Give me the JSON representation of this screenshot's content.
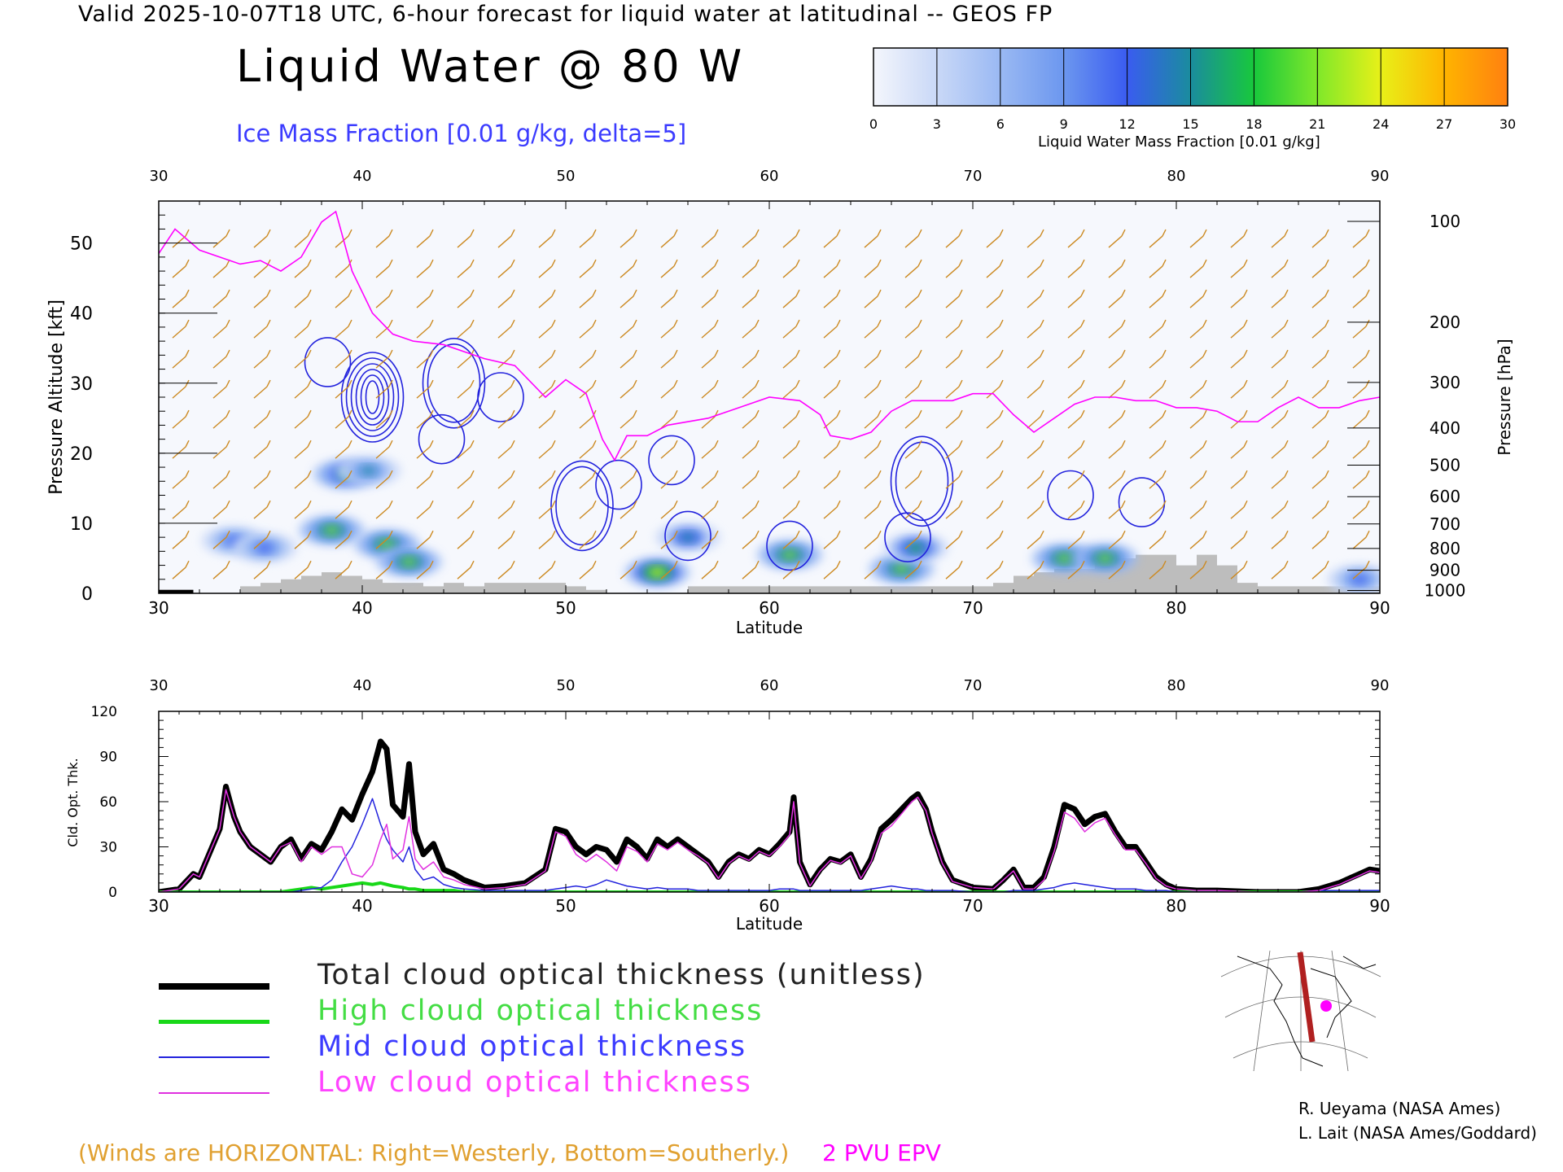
{
  "header": {
    "title": "Valid 2025-10-07T18 UTC, 6-hour forecast for liquid water at latitudinal -- GEOS FP",
    "main_title": "Liquid Water @ 80 W",
    "ice_label": "Ice Mass Fraction [0.01 g/kg, delta=5]"
  },
  "colorbar": {
    "title": "Liquid Water Mass Fraction [0.01 g/kg]",
    "ticks": [
      "0",
      "3",
      "6",
      "9",
      "12",
      "15",
      "18",
      "21",
      "24",
      "27",
      "30"
    ],
    "colors": [
      "#f4f6fc",
      "#c9d8f7",
      "#9ab9f3",
      "#6c97ef",
      "#3a5cf0",
      "#1a8c9e",
      "#18c83c",
      "#7fe82a",
      "#e8f018",
      "#ffb400",
      "#ff8010"
    ]
  },
  "legend": {
    "total": "Total cloud optical thickness (unitless)",
    "high": "High cloud optical thickness",
    "mid": "Mid cloud optical thickness",
    "low": "Low cloud optical thickness"
  },
  "notes": {
    "winds": "(Winds are HORIZONTAL: Right=Westerly, Bottom=Southerly.)",
    "pvu": "2 PVU EPV"
  },
  "credits": [
    "R. Ueyama (NASA Ames)",
    "L. Lait (NASA Ames/Goddard)"
  ],
  "colors": {
    "total": "#000000",
    "high": "#18d818",
    "mid": "#2222dd",
    "low": "#e030e0",
    "wind_barbs": "#cc8a22",
    "epv": "#ff00ff",
    "terrain": "#bdbdbd"
  },
  "chart_data": [
    {
      "type": "heatmap",
      "title": "Liquid Water @ 80 W",
      "xlabel": "Latitude",
      "ylabel": "Pressure Altitude [kft]",
      "ylabel_right": "Pressure [hPa]",
      "xlim": [
        30,
        90
      ],
      "ylim": [
        0,
        56
      ],
      "x_ticks": [
        "30",
        "40",
        "50",
        "60",
        "70",
        "80",
        "90"
      ],
      "y_ticks": [
        "0",
        "10",
        "20",
        "30",
        "40",
        "50"
      ],
      "pressure_ticks": [
        "100",
        "200",
        "300",
        "400",
        "500",
        "600",
        "700",
        "800",
        "900",
        "1000"
      ],
      "pressure_tick_alt": [
        53.1,
        38.7,
        30.1,
        23.6,
        18.3,
        13.8,
        9.9,
        6.4,
        3.3,
        0.4
      ],
      "liquid_water_blobs": [
        {
          "lat": 33.7,
          "alt": 7.5,
          "value": 12
        },
        {
          "lat": 35.2,
          "alt": 6.5,
          "value": 13
        },
        {
          "lat": 38.5,
          "alt": 9.0,
          "value": 22
        },
        {
          "lat": 39.2,
          "alt": 17.0,
          "value": 18
        },
        {
          "lat": 40.3,
          "alt": 17.5,
          "value": 14
        },
        {
          "lat": 41.2,
          "alt": 7.0,
          "value": 20
        },
        {
          "lat": 42.3,
          "alt": 4.5,
          "value": 21
        },
        {
          "lat": 54.5,
          "alt": 3.0,
          "value": 24
        },
        {
          "lat": 56.0,
          "alt": 8.0,
          "value": 16
        },
        {
          "lat": 61.0,
          "alt": 5.5,
          "value": 20
        },
        {
          "lat": 66.5,
          "alt": 3.5,
          "value": 22
        },
        {
          "lat": 67.2,
          "alt": 6.5,
          "value": 17
        },
        {
          "lat": 74.5,
          "alt": 5.0,
          "value": 20
        },
        {
          "lat": 76.5,
          "alt": 5.0,
          "value": 21
        },
        {
          "lat": 89.0,
          "alt": 2.0,
          "value": 12
        }
      ],
      "ice_contours": [
        {
          "lat": 38.3,
          "alt": 33,
          "levels": 1
        },
        {
          "lat": 40.5,
          "alt": 28,
          "levels": 6
        },
        {
          "lat": 44.5,
          "alt": 30,
          "levels": 2
        },
        {
          "lat": 43.9,
          "alt": 22,
          "levels": 1
        },
        {
          "lat": 46.8,
          "alt": 28,
          "levels": 1
        },
        {
          "lat": 50.8,
          "alt": 12.5,
          "levels": 2
        },
        {
          "lat": 52.6,
          "alt": 15.5,
          "levels": 1
        },
        {
          "lat": 55.2,
          "alt": 19,
          "levels": 1
        },
        {
          "lat": 56.0,
          "alt": 8.2,
          "levels": 1
        },
        {
          "lat": 61.0,
          "alt": 6.8,
          "levels": 1
        },
        {
          "lat": 67.5,
          "alt": 16,
          "levels": 2
        },
        {
          "lat": 66.8,
          "alt": 8,
          "levels": 1
        },
        {
          "lat": 74.8,
          "alt": 14,
          "levels": 1
        },
        {
          "lat": 78.3,
          "alt": 13,
          "levels": 1
        }
      ],
      "epv_2pvu": {
        "x": [
          30,
          30.8,
          32,
          33,
          34,
          35,
          36,
          37,
          38,
          38.7,
          39.5,
          40.5,
          41.5,
          42.5,
          44,
          46,
          47.5,
          49,
          50,
          51,
          51.8,
          52.4,
          53,
          54,
          55,
          57,
          58,
          59,
          60,
          61.5,
          62.5,
          63,
          64,
          65,
          66,
          67,
          68,
          69,
          70,
          71,
          72,
          73,
          74,
          75,
          76,
          77,
          78,
          79,
          80,
          81,
          82,
          83,
          84,
          85,
          86,
          87,
          88,
          89,
          90
        ],
        "y": [
          48.5,
          52,
          49,
          48,
          47,
          47.5,
          46,
          48,
          53,
          54.5,
          46,
          40,
          37,
          36,
          35.5,
          33.5,
          32.5,
          28,
          30.5,
          28.5,
          22,
          19,
          22.5,
          22.5,
          24,
          25,
          26,
          27,
          28,
          27.5,
          25.5,
          22.5,
          22,
          23,
          26,
          27.5,
          27.5,
          27.5,
          28.5,
          28.5,
          25.5,
          23,
          25,
          27,
          28,
          28,
          27.5,
          27.5,
          26.5,
          26.5,
          26,
          24.5,
          24.5,
          26.5,
          28,
          26.5,
          26.5,
          27.5,
          28
        ]
      },
      "terrain_kft": {
        "x": [
          30,
          34,
          35,
          36,
          37,
          38,
          39,
          40,
          41,
          42,
          43,
          44,
          45,
          46,
          47,
          48,
          49,
          50,
          51,
          52,
          53,
          54,
          55,
          56,
          57,
          58,
          59,
          60,
          61,
          62,
          63,
          64,
          65,
          66,
          67,
          68,
          69,
          70,
          71,
          72,
          73,
          74,
          75,
          76,
          77,
          78,
          79,
          80,
          81,
          82,
          83,
          84,
          85,
          86,
          87,
          88,
          89,
          90
        ],
        "y": [
          0,
          1,
          1.5,
          2,
          2.5,
          3,
          2.5,
          2,
          1.5,
          1.5,
          1,
          1.5,
          1,
          1.5,
          1.5,
          1.5,
          1.5,
          1,
          0.5,
          0,
          0,
          0,
          0,
          1,
          1,
          1,
          1,
          1,
          1,
          1,
          1,
          1,
          1,
          1,
          1,
          1,
          1,
          1,
          1.5,
          2.5,
          3,
          3.5,
          3.5,
          4.5,
          5,
          5.5,
          5.5,
          4,
          5.5,
          4,
          1.5,
          1,
          1,
          1,
          1,
          1,
          1,
          0
        ]
      },
      "wind_barbs": "horizontal wind barbs at every 2 degrees latitude (values not labeled)"
    },
    {
      "type": "line",
      "xlabel": "Latitude",
      "ylabel": "Cld. Opt. Thk.",
      "xlim": [
        30,
        90
      ],
      "ylim": [
        0,
        120
      ],
      "x_ticks": [
        "30",
        "40",
        "50",
        "60",
        "70",
        "80",
        "90"
      ],
      "y_ticks": [
        "0",
        "30",
        "60",
        "90",
        "120"
      ],
      "x": [
        30,
        31,
        31.7,
        32,
        33,
        33.3,
        33.7,
        34,
        34.5,
        35,
        35.5,
        36,
        36.5,
        37,
        37.5,
        38,
        38.5,
        39,
        39.5,
        40,
        40.5,
        40.9,
        41.2,
        41.5,
        42,
        42.3,
        42.6,
        43,
        43.5,
        44,
        44.5,
        45,
        46,
        47,
        48,
        49,
        49.5,
        50,
        50.5,
        51,
        51.5,
        52,
        52.5,
        53,
        53.5,
        54,
        54.5,
        55,
        55.5,
        56,
        56.5,
        57,
        57.5,
        58,
        58.5,
        59,
        59.5,
        60,
        60.5,
        61,
        61.2,
        61.5,
        62,
        62.5,
        63,
        63.5,
        64,
        64.5,
        65,
        65.5,
        66,
        66.5,
        67,
        67.3,
        67.7,
        68,
        68.5,
        69,
        70,
        71,
        71.5,
        72,
        72.5,
        73,
        73.5,
        74,
        74.5,
        75,
        75.5,
        76,
        76.5,
        77,
        77.5,
        78,
        78.5,
        79,
        79.5,
        80,
        81,
        82,
        84,
        86,
        87,
        88,
        89,
        89.5,
        90
      ],
      "series": [
        {
          "name": "Total cloud optical thickness (unitless)",
          "values": [
            0,
            2,
            12,
            10,
            42,
            70,
            50,
            40,
            30,
            25,
            20,
            30,
            35,
            22,
            32,
            28,
            40,
            55,
            48,
            65,
            80,
            100,
            95,
            58,
            50,
            85,
            40,
            25,
            32,
            15,
            12,
            8,
            3,
            4,
            6,
            15,
            42,
            40,
            30,
            25,
            30,
            28,
            20,
            35,
            30,
            22,
            35,
            30,
            35,
            30,
            25,
            20,
            10,
            20,
            25,
            22,
            28,
            25,
            32,
            40,
            63,
            20,
            5,
            15,
            22,
            20,
            25,
            10,
            22,
            42,
            48,
            55,
            62,
            65,
            55,
            40,
            20,
            8,
            3,
            2,
            8,
            15,
            3,
            3,
            10,
            30,
            58,
            55,
            45,
            50,
            52,
            40,
            30,
            30,
            20,
            10,
            5,
            2,
            1,
            1,
            0,
            0,
            2,
            6,
            12,
            15,
            14
          ]
        },
        {
          "name": "High cloud optical thickness",
          "values": [
            0,
            0,
            0,
            0,
            0,
            0,
            0,
            0,
            0,
            0,
            0,
            0,
            1,
            2,
            3,
            2,
            3,
            4,
            5,
            6,
            5,
            6,
            5,
            4,
            3,
            2,
            2,
            1,
            1,
            1,
            1,
            0,
            0,
            0,
            0,
            0,
            0,
            0,
            0,
            0,
            0,
            0,
            0,
            0,
            0,
            0,
            0,
            0,
            0,
            0,
            0,
            0,
            0,
            0,
            0,
            0,
            0,
            0,
            0,
            0,
            0,
            0,
            0,
            0,
            0,
            0,
            0,
            0,
            0,
            0,
            0,
            0,
            0,
            0,
            0,
            0,
            0,
            0,
            0,
            0,
            0,
            0,
            0,
            0,
            0,
            0,
            0,
            0,
            0,
            0,
            0,
            0,
            0,
            0,
            0,
            0,
            0,
            0,
            0,
            0,
            0,
            0,
            0,
            0,
            0,
            0,
            0
          ]
        },
        {
          "name": "Mid cloud optical thickness",
          "values": [
            0,
            0,
            0,
            0,
            0,
            0,
            0,
            0,
            0,
            0,
            0,
            0,
            0,
            1,
            2,
            3,
            8,
            20,
            30,
            45,
            62,
            45,
            35,
            28,
            20,
            30,
            15,
            8,
            10,
            5,
            3,
            2,
            1,
            1,
            1,
            1,
            2,
            3,
            4,
            3,
            5,
            8,
            6,
            4,
            3,
            2,
            3,
            2,
            2,
            2,
            1,
            1,
            1,
            1,
            1,
            1,
            1,
            1,
            2,
            2,
            2,
            1,
            1,
            1,
            1,
            1,
            1,
            1,
            2,
            3,
            4,
            3,
            2,
            2,
            1,
            1,
            1,
            1,
            0,
            0,
            0,
            1,
            1,
            1,
            2,
            3,
            5,
            6,
            5,
            4,
            3,
            2,
            2,
            2,
            1,
            1,
            1,
            0,
            0,
            0,
            0,
            0,
            1,
            1,
            1,
            1,
            1
          ]
        },
        {
          "name": "Low cloud optical thickness",
          "values": [
            0,
            2,
            12,
            10,
            42,
            68,
            50,
            40,
            30,
            25,
            20,
            30,
            33,
            20,
            30,
            25,
            30,
            30,
            12,
            10,
            18,
            35,
            45,
            22,
            28,
            50,
            22,
            15,
            20,
            10,
            8,
            5,
            2,
            3,
            5,
            14,
            40,
            37,
            25,
            20,
            25,
            20,
            14,
            30,
            27,
            20,
            32,
            28,
            33,
            28,
            24,
            19,
            9,
            19,
            24,
            21,
            27,
            24,
            30,
            38,
            60,
            19,
            4,
            14,
            21,
            19,
            24,
            9,
            20,
            39,
            44,
            52,
            60,
            63,
            54,
            39,
            19,
            7,
            3,
            2,
            8,
            14,
            2,
            2,
            8,
            27,
            53,
            49,
            40,
            46,
            49,
            38,
            28,
            28,
            19,
            9,
            4,
            2,
            1,
            1,
            0,
            0,
            1,
            5,
            11,
            14,
            13
          ]
        }
      ]
    }
  ]
}
